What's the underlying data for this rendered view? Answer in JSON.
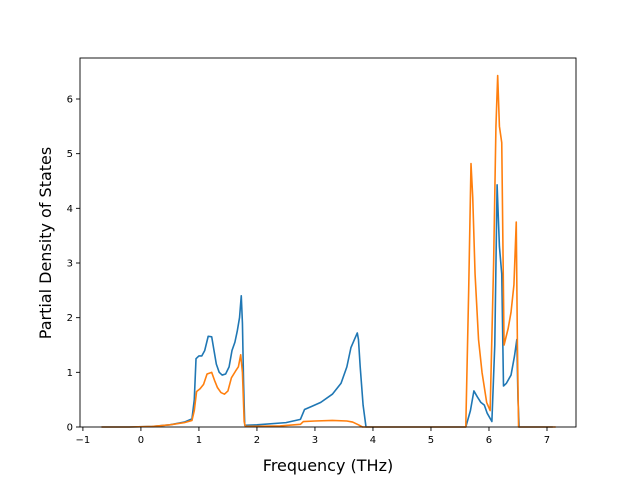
{
  "chart_data": {
    "type": "line",
    "title": "",
    "xlabel": "Frequency (THz)",
    "ylabel": "Partial Density of States",
    "xlim": [
      -1.05,
      7.5
    ],
    "ylim": [
      0,
      6.75
    ],
    "xticks": [
      -1,
      0,
      1,
      2,
      3,
      4,
      5,
      6,
      7
    ],
    "xtick_labels": [
      "−1",
      "0",
      "1",
      "2",
      "3",
      "4",
      "5",
      "6",
      "7"
    ],
    "yticks": [
      0,
      1,
      2,
      3,
      4,
      5,
      6
    ],
    "ytick_labels": [
      "0",
      "1",
      "2",
      "3",
      "4",
      "5",
      "6"
    ],
    "grid": false,
    "legend": "none",
    "series": [
      {
        "color": "#1f77b4",
        "points": [
          [
            -0.68,
            0
          ],
          [
            -0.2,
            0
          ],
          [
            0.2,
            0.01
          ],
          [
            0.5,
            0.04
          ],
          [
            0.75,
            0.09
          ],
          [
            0.88,
            0.15
          ],
          [
            0.92,
            0.5
          ],
          [
            0.95,
            1.25
          ],
          [
            1.0,
            1.3
          ],
          [
            1.05,
            1.3
          ],
          [
            1.1,
            1.4
          ],
          [
            1.16,
            1.66
          ],
          [
            1.22,
            1.65
          ],
          [
            1.26,
            1.4
          ],
          [
            1.3,
            1.15
          ],
          [
            1.35,
            1.0
          ],
          [
            1.4,
            0.95
          ],
          [
            1.46,
            0.97
          ],
          [
            1.52,
            1.1
          ],
          [
            1.57,
            1.4
          ],
          [
            1.62,
            1.55
          ],
          [
            1.66,
            1.75
          ],
          [
            1.7,
            2.0
          ],
          [
            1.73,
            2.4
          ],
          [
            1.75,
            1.9
          ],
          [
            1.77,
            0.8
          ],
          [
            1.79,
            0.03
          ],
          [
            2.0,
            0.04
          ],
          [
            2.5,
            0.08
          ],
          [
            2.75,
            0.14
          ],
          [
            2.82,
            0.32
          ],
          [
            2.95,
            0.38
          ],
          [
            3.1,
            0.45
          ],
          [
            3.3,
            0.6
          ],
          [
            3.45,
            0.8
          ],
          [
            3.55,
            1.1
          ],
          [
            3.62,
            1.45
          ],
          [
            3.68,
            1.6
          ],
          [
            3.73,
            1.72
          ],
          [
            3.75,
            1.6
          ],
          [
            3.78,
            1.1
          ],
          [
            3.83,
            0.4
          ],
          [
            3.88,
            0
          ],
          [
            5.6,
            0
          ],
          [
            5.68,
            0.3
          ],
          [
            5.74,
            0.66
          ],
          [
            5.8,
            0.55
          ],
          [
            5.86,
            0.45
          ],
          [
            5.92,
            0.4
          ],
          [
            5.97,
            0.25
          ],
          [
            6.05,
            0.1
          ],
          [
            6.1,
            1.5
          ],
          [
            6.14,
            4.43
          ],
          [
            6.18,
            3.3
          ],
          [
            6.22,
            2.8
          ],
          [
            6.25,
            0.75
          ],
          [
            6.3,
            0.8
          ],
          [
            6.38,
            0.95
          ],
          [
            6.44,
            1.3
          ],
          [
            6.48,
            1.6
          ],
          [
            6.5,
            0.5
          ],
          [
            6.52,
            0
          ],
          [
            7.1,
            0
          ]
        ]
      },
      {
        "color": "#ff7f0e",
        "points": [
          [
            -0.68,
            0
          ],
          [
            -0.2,
            0
          ],
          [
            0.2,
            0.01
          ],
          [
            0.5,
            0.04
          ],
          [
            0.75,
            0.08
          ],
          [
            0.88,
            0.12
          ],
          [
            0.92,
            0.3
          ],
          [
            0.96,
            0.65
          ],
          [
            1.02,
            0.7
          ],
          [
            1.08,
            0.78
          ],
          [
            1.14,
            0.97
          ],
          [
            1.22,
            1.0
          ],
          [
            1.27,
            0.85
          ],
          [
            1.32,
            0.72
          ],
          [
            1.38,
            0.63
          ],
          [
            1.44,
            0.6
          ],
          [
            1.5,
            0.66
          ],
          [
            1.56,
            0.9
          ],
          [
            1.63,
            1.02
          ],
          [
            1.68,
            1.1
          ],
          [
            1.72,
            1.32
          ],
          [
            1.75,
            1.0
          ],
          [
            1.78,
            0.1
          ],
          [
            1.8,
            0.01
          ],
          [
            2.4,
            0.02
          ],
          [
            2.75,
            0.05
          ],
          [
            2.8,
            0.1
          ],
          [
            3.0,
            0.11
          ],
          [
            3.3,
            0.12
          ],
          [
            3.55,
            0.11
          ],
          [
            3.65,
            0.09
          ],
          [
            3.75,
            0.04
          ],
          [
            3.82,
            0
          ],
          [
            5.6,
            0
          ],
          [
            5.65,
            2.5
          ],
          [
            5.69,
            4.82
          ],
          [
            5.72,
            4.2
          ],
          [
            5.76,
            2.8
          ],
          [
            5.82,
            1.6
          ],
          [
            5.88,
            1.0
          ],
          [
            5.96,
            0.45
          ],
          [
            6.02,
            0.3
          ],
          [
            6.08,
            3.0
          ],
          [
            6.12,
            5.5
          ],
          [
            6.15,
            6.43
          ],
          [
            6.18,
            5.5
          ],
          [
            6.22,
            5.2
          ],
          [
            6.26,
            1.5
          ],
          [
            6.33,
            1.8
          ],
          [
            6.38,
            2.1
          ],
          [
            6.43,
            2.6
          ],
          [
            6.47,
            3.75
          ],
          [
            6.49,
            1.5
          ],
          [
            6.51,
            0
          ],
          [
            7.15,
            0
          ]
        ]
      }
    ]
  }
}
